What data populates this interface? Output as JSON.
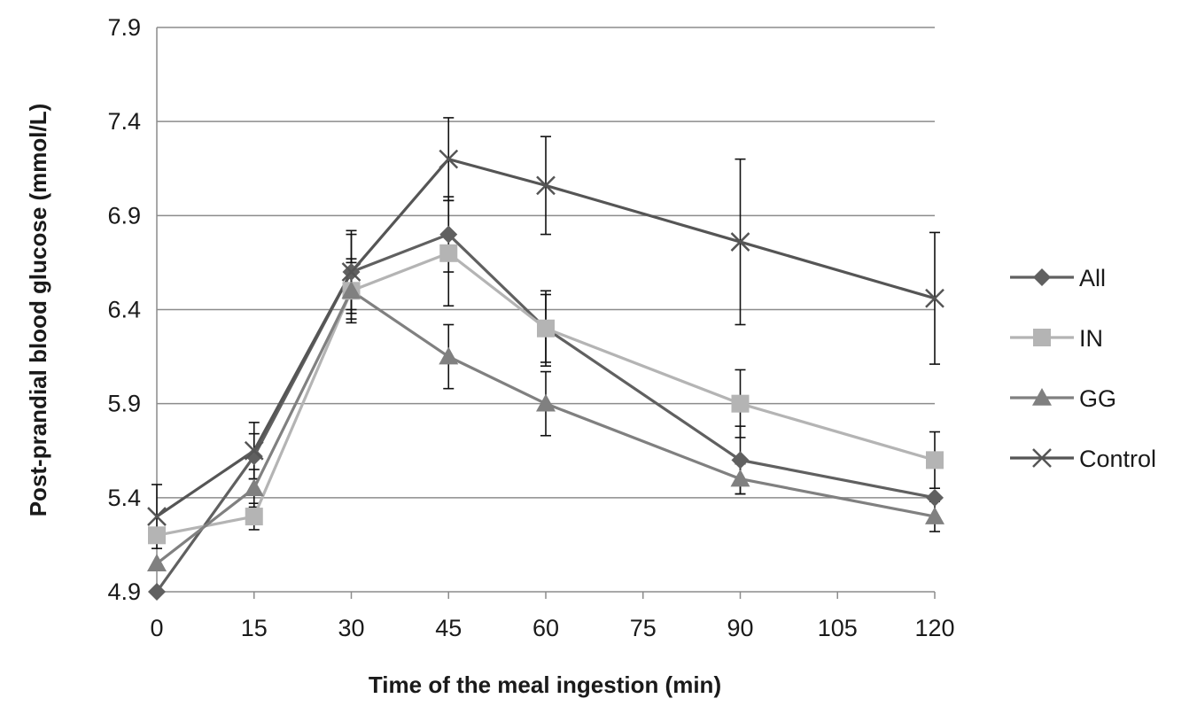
{
  "chart_data": {
    "type": "line",
    "title": "",
    "xlabel": "Time of the meal ingestion (min)",
    "ylabel": "Post-prandial blood glucose (mmol/L)",
    "xlim": [
      0,
      120
    ],
    "ylim": [
      4.9,
      7.9
    ],
    "x_ticks": [
      0,
      15,
      30,
      45,
      60,
      75,
      90,
      105,
      120
    ],
    "y_ticks": [
      4.9,
      5.4,
      5.9,
      6.4,
      6.9,
      7.4,
      7.9
    ],
    "y_tick_labels": [
      "4.9",
      "5.4",
      "5.9",
      "6.4",
      "6.9",
      "7.4",
      "7.9"
    ],
    "grid": "horizontal",
    "legend_position": "right",
    "series": [
      {
        "name": "All",
        "marker": "diamond",
        "color": "#606060",
        "x": [
          0,
          15,
          30,
          45,
          60,
          90,
          120
        ],
        "values": [
          4.9,
          5.62,
          6.6,
          6.8,
          6.3,
          5.6,
          5.4
        ],
        "error": [
          0,
          0.12,
          0.22,
          0.2,
          0.18,
          0.18,
          0
        ]
      },
      {
        "name": "IN",
        "marker": "square",
        "color": "#b4b4b4",
        "x": [
          0,
          15,
          30,
          45,
          60,
          90,
          120
        ],
        "values": [
          5.2,
          5.3,
          6.5,
          6.7,
          6.3,
          5.9,
          5.6
        ],
        "error": [
          0,
          0.07,
          0.15,
          0.28,
          0.2,
          0.18,
          0.15
        ]
      },
      {
        "name": "GG",
        "marker": "triangle",
        "color": "#808080",
        "x": [
          0,
          15,
          30,
          45,
          60,
          90,
          120
        ],
        "values": [
          5.05,
          5.45,
          6.5,
          6.15,
          5.9,
          5.5,
          5.3
        ],
        "error": [
          0,
          0.1,
          0.17,
          0.17,
          0.17,
          0.08,
          0.08
        ]
      },
      {
        "name": "Control",
        "marker": "x",
        "color": "#555555",
        "x": [
          0,
          15,
          30,
          45,
          60,
          90,
          120
        ],
        "values": [
          5.3,
          5.65,
          6.6,
          7.2,
          7.06,
          6.76,
          6.46
        ],
        "error": [
          0.17,
          0.15,
          0.2,
          0.22,
          0.26,
          0.44,
          0.35
        ]
      }
    ]
  }
}
